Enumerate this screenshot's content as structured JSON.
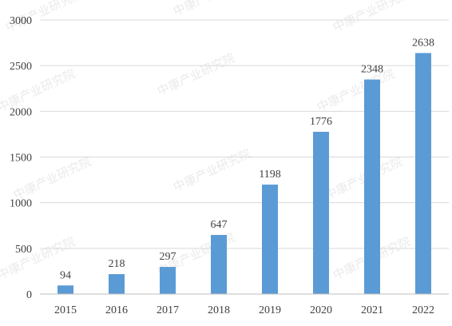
{
  "watermark": {
    "text": "中康产业研究院",
    "color": "#d9d9d9"
  },
  "chart_data": {
    "type": "bar",
    "categories": [
      "2015",
      "2016",
      "2017",
      "2018",
      "2019",
      "2020",
      "2021",
      "2022"
    ],
    "values": [
      94,
      218,
      297,
      647,
      1198,
      1776,
      2348,
      2638
    ],
    "data_labels": [
      "94",
      "218",
      "297",
      "647",
      "1198",
      "1776",
      "2348",
      "2638"
    ],
    "y_ticks": [
      0,
      500,
      1000,
      1500,
      2000,
      2500,
      3000
    ],
    "y_tick_labels": [
      "0",
      "500",
      "1000",
      "1500",
      "2000",
      "2500",
      "3000"
    ],
    "ylim": [
      0,
      3000
    ],
    "grid": true,
    "legend": "none",
    "title": "",
    "xlabel": "",
    "ylabel": "",
    "colors": {
      "bar": "#5b9bd5",
      "grid": "#d9d9d9",
      "axis": "#bfbfbf",
      "text": "#404040"
    }
  }
}
